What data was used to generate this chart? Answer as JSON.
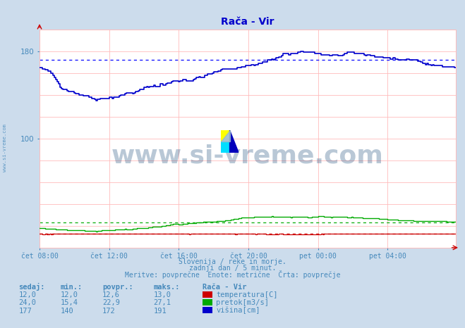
{
  "title": "Rača - Vir",
  "bg_color": "#ccdcec",
  "plot_bg_color": "#ffffff",
  "text_color": "#4488bb",
  "title_color": "#0000cc",
  "x_tick_labels": [
    "čet 08:00",
    "čet 12:00",
    "čet 16:00",
    "čet 20:00",
    "pet 00:00",
    "pet 04:00"
  ],
  "x_tick_positions": [
    0,
    48,
    96,
    144,
    192,
    240
  ],
  "ylim": [
    0,
    200
  ],
  "xlim": [
    0,
    287
  ],
  "avg_line_blue": 172,
  "avg_line_green": 22.9,
  "avg_line_red": 12.6,
  "subtitle1": "Slovenija / reke in morje.",
  "subtitle2": "zadnji dan / 5 minut.",
  "subtitle3": "Meritve: povprečne  Enote: metrične  Črta: povprečje",
  "legend_title": "Rača - Vir",
  "legend_rows": [
    {
      "sedaj": "12,0",
      "min": "12,0",
      "povpr": "12,6",
      "maks": "13,0",
      "color": "#cc0000",
      "label": "temperatura[C]"
    },
    {
      "sedaj": "24,0",
      "min": "15,4",
      "povpr": "22,9",
      "maks": "27,1",
      "color": "#00aa00",
      "label": "pretok[m3/s]"
    },
    {
      "sedaj": "177",
      "min": "140",
      "povpr": "172",
      "maks": "191",
      "color": "#0000cc",
      "label": "višina[cm]"
    }
  ],
  "watermark_text": "www.si-vreme.com",
  "watermark_color": "#1a4a7a",
  "watermark_alpha": 0.3,
  "sidebar_text": "www.si-vreme.com",
  "n_points": 288
}
